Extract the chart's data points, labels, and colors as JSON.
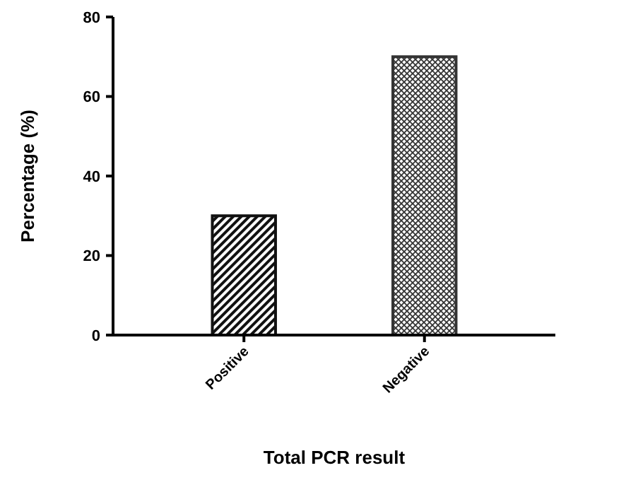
{
  "chart_data": {
    "type": "bar",
    "xlabel": "Total PCR result",
    "ylabel": "Percentage (%)",
    "categories": [
      "Positive",
      "Negative"
    ],
    "values": [
      30,
      70
    ],
    "colors": [
      "#111111",
      "#333333"
    ],
    "ylim": [
      0,
      80
    ],
    "yticks": [
      0,
      20,
      40,
      60,
      80
    ],
    "grid": false
  }
}
